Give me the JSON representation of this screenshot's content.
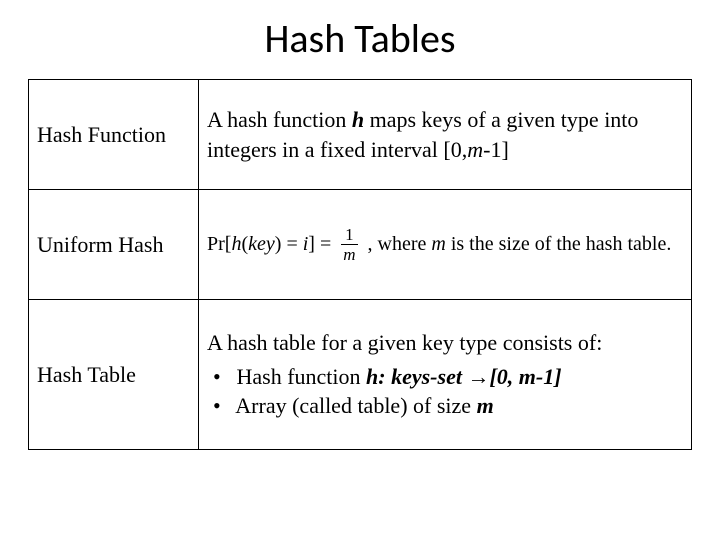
{
  "title": "Hash Tables",
  "title_fontsize": 40,
  "title_font": "Calibri",
  "body_font": "Times New Roman",
  "body_fontsize": 22,
  "border_color": "#000000",
  "background_color": "#ffffff",
  "rows": {
    "r1": {
      "term": "Hash Function",
      "desc_pre": "A hash function ",
      "desc_var": "h",
      "desc_mid": " maps keys of a given type into integers in a fixed interval [0,",
      "desc_var2": "m",
      "desc_post": "-1]"
    },
    "r2": {
      "term": "Uniform Hash",
      "formula_pr": "Pr[",
      "formula_h": "h",
      "formula_open": "(",
      "formula_key": "key",
      "formula_close": ")",
      "formula_eq1": " = ",
      "formula_i": "i",
      "formula_br": "] = ",
      "frac_num": "1",
      "frac_den": "m",
      "formula_after": " , where ",
      "formula_m": "m",
      "formula_tail": " is the size of the hash table."
    },
    "r3": {
      "term": "Hash Table",
      "line1": "A hash table for a given key type consists of:",
      "b1_pre": "Hash function ",
      "b1_h": "h: keys-set ",
      "b1_arrow": "→",
      "b1_range": "[0, m-1]",
      "b2_pre": "Array (called table) of size ",
      "b2_m": "m"
    }
  }
}
